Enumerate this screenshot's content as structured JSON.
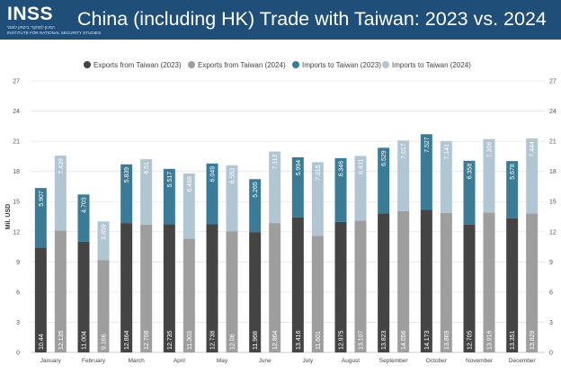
{
  "header": {
    "logo_text": "INSS",
    "logo_subtitle_1": "המכון למחקרי ביטחון לאומי",
    "logo_subtitle_2": "INSTITUTE FOR NATIONAL SECURITY STUDIES",
    "title": "China (including HK) Trade with Taiwan: 2023 vs. 2024",
    "background_color": "#1f4e79"
  },
  "chart_data": {
    "type": "bar",
    "stacked": true,
    "title": "China (including HK) Trade with Taiwan: 2023 vs. 2024",
    "ylabel": "Mil. USD",
    "xlabel": "",
    "ylim": [
      0,
      27
    ],
    "yticks": [
      "0",
      "3",
      "6",
      "9",
      "12",
      "15",
      "18",
      "21",
      "24",
      "27"
    ],
    "grid": true,
    "legend_position": "top",
    "categories": [
      "January",
      "February",
      "March",
      "April",
      "May",
      "June",
      "July",
      "August",
      "September",
      "October",
      "November",
      "December"
    ],
    "series": [
      {
        "name": "Exports from Taiwan (2023)",
        "color": "#444444",
        "year": "2023",
        "stack": "base",
        "values": [
          10.44,
          11.004,
          12.864,
          12.735,
          12.738,
          11.968,
          13.416,
          12.975,
          13.823,
          14.173,
          12.705,
          13.351
        ],
        "labels": [
          "10.44",
          "11.004",
          "12.864",
          "12.735",
          "12.738",
          "11.968",
          "13.416",
          "12.975",
          "13.823",
          "14.173",
          "12.705",
          "13.351"
        ]
      },
      {
        "name": "Exports from Taiwan (2024)",
        "color": "#9e9e9e",
        "year": "2024",
        "stack": "base",
        "values": [
          12.135,
          9.166,
          12.708,
          11.303,
          12.06,
          12.864,
          11.601,
          13.107,
          14.056,
          13.869,
          13.916,
          13.829
        ],
        "labels": [
          "12.135",
          "9.166",
          "12.708",
          "11.303",
          "12.06",
          "12.864",
          "11.601",
          "13.107",
          "14.056",
          "13.869",
          "13.916",
          "13.829"
        ]
      },
      {
        "name": "Imports to Taiwan (2023)",
        "color": "#3a7c98",
        "year": "2023",
        "stack": "top",
        "values": [
          5.907,
          4.703,
          5.839,
          5.517,
          6.049,
          5.265,
          5.994,
          6.346,
          6.529,
          7.527,
          6.358,
          5.678
        ],
        "labels": [
          "5.907",
          "4.703",
          "5.839",
          "5.517",
          "6.049",
          "5.265",
          "5.994",
          "6.346",
          "6.529",
          "7.527",
          "6.358",
          "5.678"
        ]
      },
      {
        "name": "Imports to Taiwan (2024)",
        "color": "#b1c6d3",
        "year": "2024",
        "stack": "top",
        "values": [
          7.439,
          3.859,
          6.51,
          6.488,
          6.553,
          7.113,
          7.315,
          6.431,
          7.017,
          7.141,
          7.306,
          7.444
        ],
        "labels": [
          "7.439",
          "3.859",
          "6.51",
          "6.488",
          "6.553",
          "7.113",
          "7.315",
          "6.431",
          "7.017",
          "7.141",
          "7.306",
          "7.444"
        ]
      }
    ]
  }
}
